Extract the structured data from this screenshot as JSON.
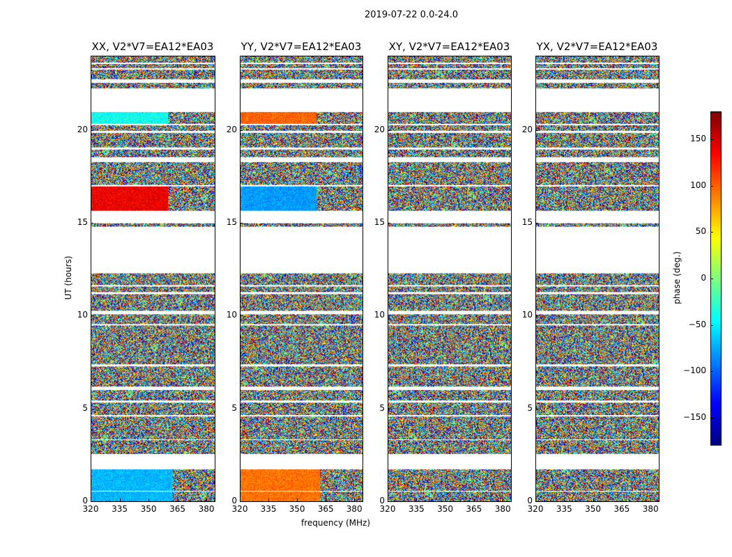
{
  "chart_data": {
    "type": "heatmap",
    "title": "2019-07-22 0.0-24.0",
    "xlabel": "frequency (MHz)",
    "ylabel": "UT (hours)",
    "xlim": [
      320,
      384.3
    ],
    "ylim": [
      0,
      24
    ],
    "xticks": [
      "320",
      "335",
      "350",
      "365",
      "380"
    ],
    "xtick_values": [
      320,
      335,
      350,
      365,
      380
    ],
    "yticks": [
      "0",
      "5",
      "10",
      "15",
      "20"
    ],
    "ytick_values": [
      0,
      5,
      10,
      15,
      20
    ],
    "data_segments_hours": [
      [
        0,
        0.55
      ],
      [
        0.6,
        1.75
      ],
      [
        2.55,
        3.3
      ],
      [
        3.35,
        4.6
      ],
      [
        4.65,
        5.35
      ],
      [
        5.45,
        6.0
      ],
      [
        6.2,
        7.3
      ],
      [
        7.4,
        9.5
      ],
      [
        9.6,
        10.1
      ],
      [
        10.3,
        11.2
      ],
      [
        11.3,
        11.6
      ],
      [
        11.7,
        12.3
      ],
      [
        14.85,
        15.0
      ],
      [
        15.7,
        17.0
      ],
      [
        17.1,
        18.3
      ],
      [
        18.6,
        19.0
      ],
      [
        19.1,
        19.9
      ],
      [
        20.0,
        20.3
      ],
      [
        20.4,
        21.0
      ],
      [
        22.3,
        22.6
      ],
      [
        22.8,
        23.3
      ],
      [
        23.4,
        23.6
      ],
      [
        23.7,
        24.0
      ]
    ],
    "panels": [
      {
        "title": "XX, V2*V7=EA12*EA03",
        "coherent_regions": [
          {
            "t": [
              0,
              1.75
            ],
            "f": [
              320,
              362
            ],
            "phase": -70
          },
          {
            "t": [
              15.7,
              17.0
            ],
            "f": [
              320,
              360
            ],
            "phase": 140
          },
          {
            "t": [
              20.4,
              21.0
            ],
            "f": [
              320,
              360
            ],
            "phase": -40
          }
        ]
      },
      {
        "title": "YY, V2*V7=EA12*EA03",
        "coherent_regions": [
          {
            "t": [
              0,
              1.75
            ],
            "f": [
              320,
              362
            ],
            "phase": 95
          },
          {
            "t": [
              15.7,
              17.0
            ],
            "f": [
              320,
              360
            ],
            "phase": -80
          },
          {
            "t": [
              20.4,
              21.0
            ],
            "f": [
              320,
              360
            ],
            "phase": 100
          }
        ]
      },
      {
        "title": "XY, V2*V7=EA12*EA03",
        "coherent_regions": []
      },
      {
        "title": "YX, V2*V7=EA12*EA03",
        "coherent_regions": []
      }
    ],
    "colorbar": {
      "label": "phase (deg.)",
      "range": [
        -180,
        180
      ],
      "colormap": "jet",
      "ticks": [
        "−150",
        "−100",
        "−50",
        "0",
        "50",
        "100",
        "150"
      ],
      "tick_values": [
        -150,
        -100,
        -50,
        0,
        50,
        100,
        150
      ]
    }
  }
}
